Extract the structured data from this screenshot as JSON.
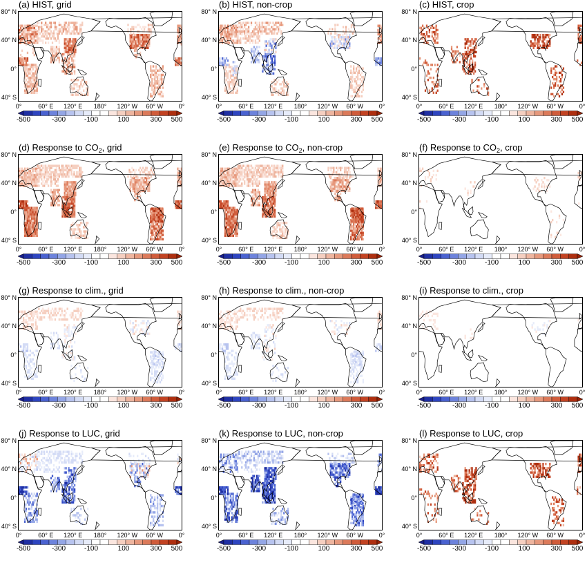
{
  "panels": [
    {
      "id": "a",
      "label": "(a) HIST, grid",
      "row": 0,
      "col": 0,
      "pattern": "hist_grid"
    },
    {
      "id": "b",
      "label": "(b) HIST, non-crop",
      "row": 0,
      "col": 1,
      "pattern": "hist_noncrop"
    },
    {
      "id": "c",
      "label": "(c) HIST, crop",
      "row": 0,
      "col": 2,
      "pattern": "hist_crop"
    },
    {
      "id": "d",
      "label": "(d) Response to CO",
      "sub": "2",
      "suffix": ", grid",
      "row": 1,
      "col": 0,
      "pattern": "co2_grid"
    },
    {
      "id": "e",
      "label": "(e) Response to CO",
      "sub": "2",
      "suffix": ", non-crop",
      "row": 1,
      "col": 1,
      "pattern": "co2_noncrop"
    },
    {
      "id": "f",
      "label": "(f) Response to CO",
      "sub": "2",
      "suffix": ", crop",
      "row": 1,
      "col": 2,
      "pattern": "co2_crop"
    },
    {
      "id": "g",
      "label": "(g) Response to clim., grid",
      "row": 2,
      "col": 0,
      "pattern": "clim_grid"
    },
    {
      "id": "h",
      "label": "(h) Response to clim., non-crop",
      "row": 2,
      "col": 1,
      "pattern": "clim_noncrop"
    },
    {
      "id": "i",
      "label": "(i) Response to  clim., crop",
      "row": 2,
      "col": 2,
      "pattern": "clim_crop"
    },
    {
      "id": "j",
      "label": "(j) Response to LUC, grid",
      "row": 3,
      "col": 0,
      "pattern": "luc_grid"
    },
    {
      "id": "k",
      "label": "(k) Response to LUC, non-crop",
      "row": 3,
      "col": 1,
      "pattern": "luc_noncrop"
    },
    {
      "id": "l",
      "label": "(l) Response to LUC, crop",
      "row": 3,
      "col": 2,
      "pattern": "luc_crop"
    }
  ],
  "lat_ticks": [
    "80° N",
    "40° N",
    "0°",
    "40° S"
  ],
  "lon_ticks": [
    "0°",
    "60° E",
    "120° E",
    "180°",
    "120° W",
    "60° W",
    "0°"
  ],
  "colorbar": {
    "labels": [
      "-500",
      "-300",
      "-100",
      "100",
      "300",
      "500"
    ],
    "colors": [
      "#1f2fa3",
      "#2e45c0",
      "#4a62d0",
      "#6d83dc",
      "#94a6e6",
      "#b7c3ef",
      "#d3dbf5",
      "#e7ecfa",
      "#ffffff",
      "#ffffff",
      "#fbe6df",
      "#f5cfc0",
      "#eeb59f",
      "#e6987c",
      "#dc7a5a",
      "#d05c3b",
      "#c24323",
      "#ae2f10"
    ],
    "low_color": "#1a1f8c",
    "high_color": "#9a2408"
  }
}
